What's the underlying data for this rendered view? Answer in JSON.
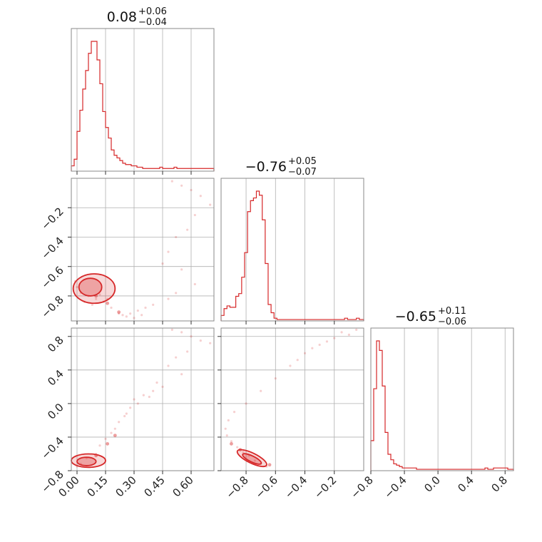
{
  "chart_data": {
    "type": "corner",
    "color": "#d62728",
    "grid": true,
    "panels": [
      {
        "id": "hist-1",
        "type": "histogram",
        "title": {
          "value": "0.08",
          "plus": "+0.06",
          "minus": "−0.04"
        },
        "xlim": [
          -0.03,
          0.72
        ],
        "bin_edges_start": -0.03,
        "bin_width": 0.015,
        "counts": [
          0.04,
          0.09,
          0.3,
          0.46,
          0.62,
          0.76,
          0.89,
          0.98,
          0.98,
          0.84,
          0.66,
          0.45,
          0.33,
          0.25,
          0.16,
          0.12,
          0.1,
          0.08,
          0.06,
          0.05,
          0.05,
          0.04,
          0.04,
          0.03,
          0.03,
          0.02,
          0.02,
          0.02,
          0.02,
          0.02,
          0.02,
          0.03,
          0.02,
          0.02,
          0.02,
          0.02,
          0.03,
          0.02,
          0.02,
          0.02,
          0.02,
          0.02,
          0.02,
          0.02,
          0.02,
          0.02,
          0.02,
          0.02,
          0.02,
          0.02
        ]
      },
      {
        "id": "hist-2",
        "type": "histogram",
        "title": {
          "value": "−0.76",
          "plus": "+0.05",
          "minus": "−0.07"
        },
        "xlim": [
          -0.97,
          0.0
        ],
        "bin_edges_start": -0.97,
        "bin_width": 0.02,
        "counts": [
          0.04,
          0.09,
          0.11,
          0.1,
          0.1,
          0.18,
          0.2,
          0.32,
          0.5,
          0.8,
          0.88,
          0.9,
          0.95,
          0.92,
          0.74,
          0.42,
          0.12,
          0.06,
          0.02,
          0.01,
          0.01,
          0.01,
          0.01,
          0.01,
          0.01,
          0.01,
          0.01,
          0.01,
          0.01,
          0.01,
          0.01,
          0.01,
          0.01,
          0.01,
          0.01,
          0.01,
          0.01,
          0.01,
          0.01,
          0.01,
          0.01,
          0.01,
          0.02,
          0.01,
          0.01,
          0.01,
          0.02,
          0.01,
          0.01
        ]
      },
      {
        "id": "hist-3",
        "type": "histogram",
        "title": {
          "value": "−0.65",
          "plus": "+0.11",
          "minus": "−0.06"
        },
        "xlim": [
          -0.8,
          0.9
        ],
        "bin_edges_start": -0.8,
        "bin_width": 0.034,
        "counts": [
          0.22,
          0.6,
          0.95,
          0.88,
          0.62,
          0.28,
          0.12,
          0.08,
          0.05,
          0.04,
          0.03,
          0.02,
          0.02,
          0.02,
          0.02,
          0.02,
          0.01,
          0.01,
          0.01,
          0.01,
          0.01,
          0.01,
          0.01,
          0.01,
          0.01,
          0.01,
          0.01,
          0.01,
          0.01,
          0.01,
          0.01,
          0.01,
          0.01,
          0.01,
          0.01,
          0.01,
          0.01,
          0.01,
          0.01,
          0.01,
          0.02,
          0.01,
          0.01,
          0.02,
          0.02,
          0.02,
          0.02,
          0.02,
          0.01,
          0.01
        ]
      },
      {
        "id": "scatter-21",
        "type": "contour",
        "xlim": [
          -0.03,
          0.72
        ],
        "ylim": [
          -0.97,
          0.0
        ],
        "points": [
          [
            0.5,
            -0.02
          ],
          [
            0.55,
            -0.05
          ],
          [
            0.6,
            -0.08
          ],
          [
            0.65,
            -0.12
          ],
          [
            0.7,
            -0.18
          ],
          [
            0.62,
            -0.25
          ],
          [
            0.58,
            -0.35
          ],
          [
            0.52,
            -0.4
          ],
          [
            0.48,
            -0.5
          ],
          [
            0.45,
            -0.58
          ],
          [
            0.55,
            -0.62
          ],
          [
            0.62,
            -0.72
          ],
          [
            0.52,
            -0.78
          ],
          [
            0.48,
            -0.82
          ],
          [
            0.4,
            -0.86
          ],
          [
            0.36,
            -0.88
          ],
          [
            0.32,
            -0.9
          ],
          [
            0.28,
            -0.92
          ],
          [
            0.24,
            -0.93
          ],
          [
            0.22,
            -0.92
          ],
          [
            0.18,
            -0.88
          ],
          [
            0.14,
            -0.84
          ],
          [
            0.1,
            -0.82
          ],
          [
            0.06,
            -0.8
          ],
          [
            0.02,
            -0.78
          ],
          [
            0.0,
            -0.74
          ],
          [
            -0.01,
            -0.7
          ],
          [
            0.04,
            -0.84
          ],
          [
            0.08,
            -0.86
          ],
          [
            0.12,
            -0.79
          ],
          [
            0.16,
            -0.82
          ],
          [
            0.26,
            -0.94
          ],
          [
            0.3,
            -0.95
          ],
          [
            0.34,
            -0.93
          ]
        ],
        "contours": [
          {
            "level": "outer",
            "cx": 0.09,
            "cy": -0.75,
            "rx": 0.11,
            "ry": 0.1,
            "tilt": 0
          },
          {
            "level": "inner",
            "cx": 0.07,
            "cy": -0.74,
            "rx": 0.06,
            "ry": 0.06,
            "tilt": 0
          }
        ],
        "tail": [
          [
            0.1,
            -0.8
          ],
          [
            0.16,
            -0.85
          ],
          [
            0.22,
            -0.91
          ]
        ]
      },
      {
        "id": "scatter-31",
        "type": "contour",
        "xlim": [
          -0.03,
          0.72
        ],
        "ylim": [
          -0.8,
          0.9
        ],
        "points": [
          [
            0.5,
            0.88
          ],
          [
            0.55,
            0.85
          ],
          [
            0.6,
            0.8
          ],
          [
            0.65,
            0.75
          ],
          [
            0.7,
            0.72
          ],
          [
            0.58,
            0.62
          ],
          [
            0.52,
            0.55
          ],
          [
            0.48,
            0.45
          ],
          [
            0.55,
            0.35
          ],
          [
            0.45,
            0.2
          ],
          [
            0.4,
            0.15
          ],
          [
            0.35,
            0.1
          ],
          [
            0.3,
            0.05
          ],
          [
            0.28,
            -0.05
          ],
          [
            0.25,
            -0.15
          ],
          [
            0.22,
            -0.22
          ],
          [
            0.2,
            -0.3
          ],
          [
            0.18,
            -0.35
          ],
          [
            0.15,
            -0.42
          ],
          [
            0.12,
            -0.5
          ],
          [
            0.1,
            -0.6
          ],
          [
            0.05,
            -0.65
          ],
          [
            0.02,
            -0.72
          ],
          [
            0.0,
            -0.75
          ],
          [
            0.26,
            -0.12
          ],
          [
            0.32,
            0.0
          ],
          [
            0.38,
            0.08
          ],
          [
            0.42,
            0.25
          ]
        ],
        "contours": [
          {
            "level": "outer",
            "cx": 0.06,
            "cy": -0.68,
            "rx": 0.09,
            "ry": 0.08,
            "tilt": 0
          },
          {
            "level": "inner",
            "cx": 0.05,
            "cy": -0.69,
            "rx": 0.05,
            "ry": 0.05,
            "tilt": 0
          }
        ],
        "tail": [
          [
            0.1,
            -0.62
          ],
          [
            0.16,
            -0.48
          ],
          [
            0.2,
            -0.38
          ]
        ]
      },
      {
        "id": "scatter-32",
        "type": "contour",
        "xlim": [
          -0.97,
          0.0
        ],
        "ylim": [
          -0.8,
          0.9
        ],
        "points": [
          [
            -0.05,
            0.88
          ],
          [
            -0.1,
            0.82
          ],
          [
            -0.2,
            0.78
          ],
          [
            -0.3,
            0.7
          ],
          [
            -0.4,
            0.6
          ],
          [
            -0.45,
            0.52
          ],
          [
            -0.5,
            0.45
          ],
          [
            -0.6,
            0.3
          ],
          [
            -0.7,
            0.15
          ],
          [
            -0.8,
            0.0
          ],
          [
            -0.88,
            -0.1
          ],
          [
            -0.92,
            -0.2
          ],
          [
            -0.94,
            -0.3
          ],
          [
            -0.93,
            -0.38
          ],
          [
            -0.9,
            -0.45
          ],
          [
            -0.86,
            -0.52
          ],
          [
            -0.82,
            -0.58
          ],
          [
            -0.78,
            -0.62
          ],
          [
            -0.74,
            -0.68
          ],
          [
            -0.7,
            -0.72
          ],
          [
            -0.66,
            -0.75
          ],
          [
            -0.15,
            0.85
          ],
          [
            -0.25,
            0.74
          ],
          [
            -0.35,
            0.66
          ]
        ],
        "contours": [
          {
            "level": "outer",
            "cx": -0.76,
            "cy": -0.65,
            "rx": 0.11,
            "ry": 0.06,
            "tilt": 26
          },
          {
            "level": "inner",
            "cx": -0.76,
            "cy": -0.66,
            "rx": 0.07,
            "ry": 0.035,
            "tilt": 26
          }
        ],
        "tail": [
          [
            -0.9,
            -0.48
          ],
          [
            -0.84,
            -0.55
          ],
          [
            -0.64,
            -0.73
          ]
        ]
      }
    ],
    "axes": {
      "x1": {
        "ticks": [
          0.0,
          0.15,
          0.3,
          0.45,
          0.6
        ],
        "labels": [
          "0.00",
          "0.15",
          "0.30",
          "0.45",
          "0.60"
        ]
      },
      "x2": {
        "ticks": [
          -0.8,
          -0.6,
          -0.4,
          -0.2
        ],
        "labels": [
          "−0.8",
          "−0.6",
          "−0.4",
          "−0.2"
        ]
      },
      "x3": {
        "ticks": [
          -0.8,
          -0.4,
          0.0,
          0.4,
          0.8
        ],
        "labels": [
          "−0.8",
          "−0.4",
          "0.0",
          "0.4",
          "0.8"
        ]
      },
      "y2": {
        "ticks": [
          -0.8,
          -0.6,
          -0.4,
          -0.2
        ],
        "labels": [
          "−0.8",
          "−0.6",
          "−0.4",
          "−0.2"
        ]
      },
      "y3": {
        "ticks": [
          -0.8,
          -0.4,
          0.0,
          0.4,
          0.8
        ],
        "labels": [
          "−0.8",
          "−0.4",
          "0.0",
          "0.4",
          "0.8"
        ]
      }
    }
  }
}
